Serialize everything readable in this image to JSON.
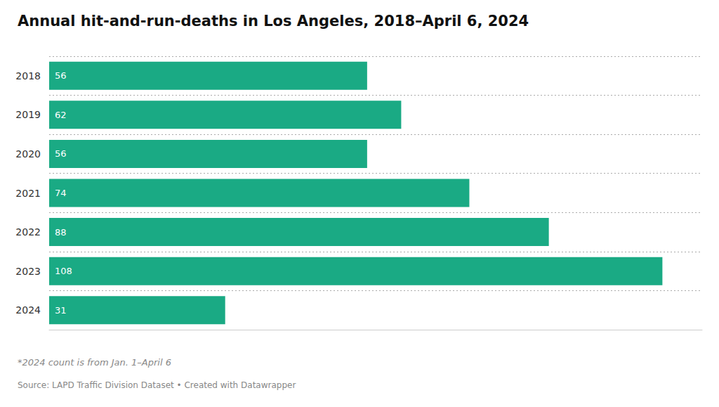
{
  "chart_data": {
    "type": "bar",
    "orientation": "horizontal",
    "title": "Annual hit-and-run-deaths in Los Angeles, 2018–April 6, 2024",
    "categories": [
      "2018",
      "2019",
      "2020",
      "2021",
      "2022",
      "2023",
      "2024"
    ],
    "values": [
      56,
      62,
      56,
      74,
      88,
      108,
      31
    ],
    "color": "#1aaa84",
    "xlim": [
      0,
      115
    ],
    "data_labels": true,
    "tick_labels": "y",
    "grid": true,
    "annotations": [
      "*2024 count is from Jan. 1–April 6",
      "Source: LAPD Traffic Division Dataset • Created with Datawrapper"
    ]
  }
}
